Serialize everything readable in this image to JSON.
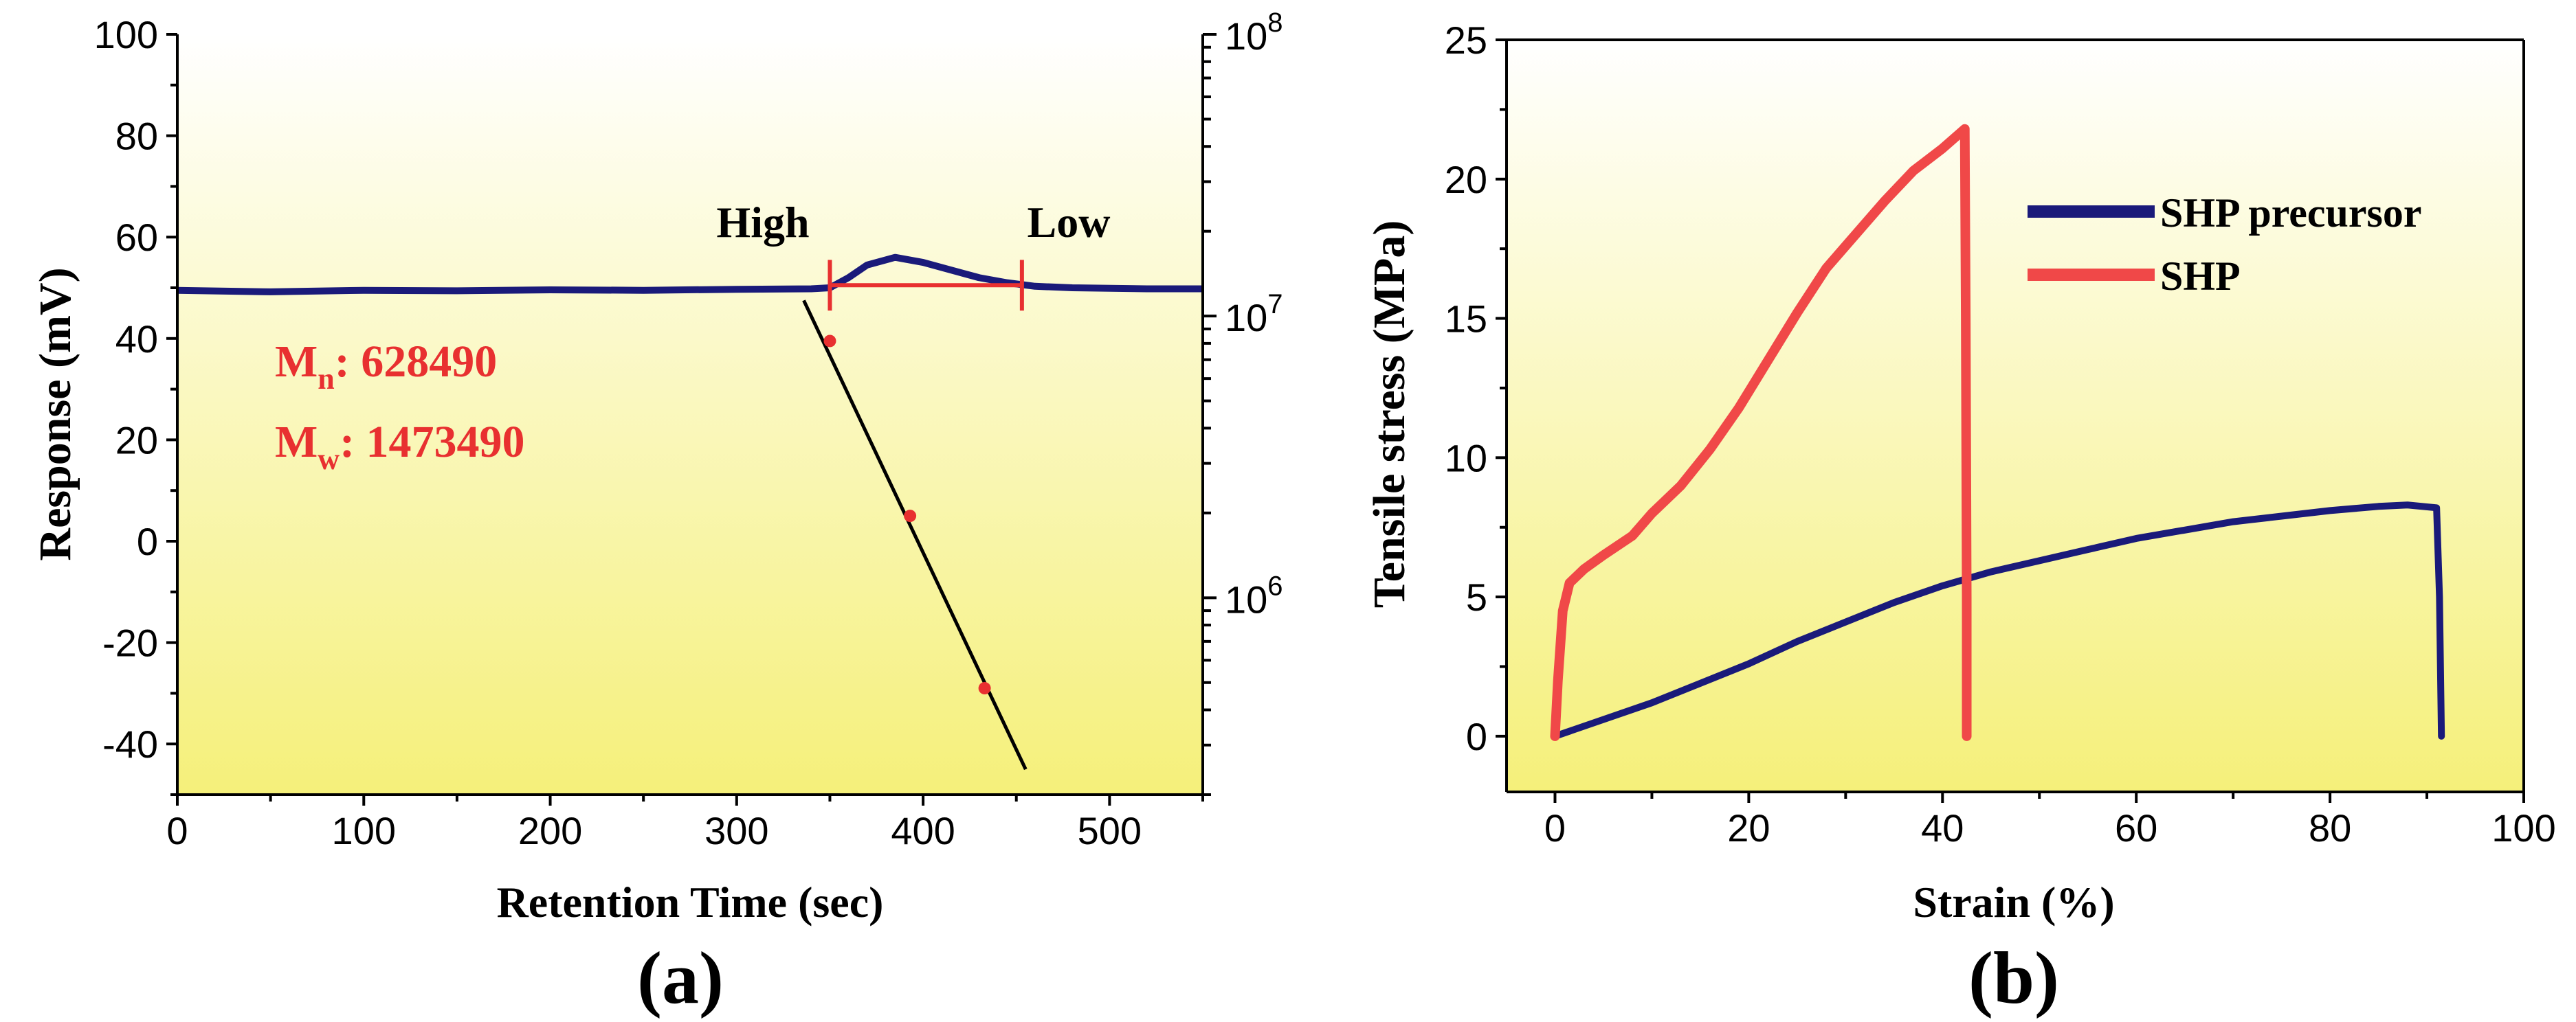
{
  "chart_data": [
    {
      "panel": "(a)",
      "type": "line",
      "xlabel": "Retention Time (sec)",
      "ylabel": "Response (mV)",
      "xlim": [
        0,
        550
      ],
      "ylim": [
        -50,
        100
      ],
      "xticks": [
        0,
        100,
        200,
        300,
        400,
        500
      ],
      "yticks": [
        -40,
        -20,
        0,
        20,
        40,
        60,
        80,
        100
      ],
      "y2_scale": "log",
      "y2lim": [
        200000,
        100000000
      ],
      "y2ticks": [
        {
          "base": "10",
          "exp": "6",
          "value": 1000000
        },
        {
          "base": "10",
          "exp": "7",
          "value": 10000000
        },
        {
          "base": "10",
          "exp": "8",
          "value": 100000000
        }
      ],
      "grid": false,
      "background": {
        "top": "#ffffff",
        "bottom": "#f5f07a"
      },
      "series": [
        {
          "color": "#1a1a7a",
          "points": [
            [
              0,
              49.5
            ],
            [
              50,
              49.2
            ],
            [
              100,
              49.5
            ],
            [
              150,
              49.4
            ],
            [
              200,
              49.6
            ],
            [
              250,
              49.5
            ],
            [
              300,
              49.7
            ],
            [
              340,
              49.8
            ],
            [
              350,
              50
            ],
            [
              360,
              52
            ],
            [
              370,
              54.5
            ],
            [
              385,
              56
            ],
            [
              400,
              55
            ],
            [
              415,
              53.5
            ],
            [
              430,
              52
            ],
            [
              445,
              51
            ],
            [
              460,
              50.3
            ],
            [
              480,
              50
            ],
            [
              520,
              49.8
            ],
            [
              550,
              49.8
            ]
          ]
        }
      ],
      "calibration_line": {
        "color": "#000000",
        "points": [
          [
            336,
            47.5
          ],
          [
            455,
            -45
          ]
        ]
      },
      "calibration_points": {
        "color": "#e83030",
        "points": [
          [
            350,
            39.5
          ],
          [
            393,
            5
          ],
          [
            433,
            -29
          ]
        ]
      },
      "range_bar": {
        "color": "#e83030",
        "x": [
          350,
          453
        ],
        "y": 50.5,
        "tick_halfheight": 5
      },
      "annotations": {
        "high": "High",
        "low": "Low",
        "mn": {
          "prefix": "M",
          "sub": "n",
          "text": ": 628490"
        },
        "mw": {
          "prefix": "M",
          "sub": "w",
          "text": ": 1473490"
        }
      }
    },
    {
      "panel": "(b)",
      "type": "line",
      "xlabel": "Strain (%)",
      "ylabel": "Tensile stress (MPa)",
      "xlim": [
        -5,
        100
      ],
      "ylim": [
        -2,
        25
      ],
      "xticks": [
        0,
        20,
        40,
        60,
        80,
        100
      ],
      "yticks": [
        0,
        5,
        10,
        15,
        20,
        25
      ],
      "grid": false,
      "legend_position": "top-right",
      "background": {
        "top": "#ffffff",
        "bottom": "#f5f07a"
      },
      "series": [
        {
          "name": "SHP precursor",
          "color": "#1a1a7a",
          "points": [
            [
              0,
              0
            ],
            [
              5,
              0.6
            ],
            [
              10,
              1.2
            ],
            [
              15,
              1.9
            ],
            [
              20,
              2.6
            ],
            [
              25,
              3.4
            ],
            [
              30,
              4.1
            ],
            [
              35,
              4.8
            ],
            [
              40,
              5.4
            ],
            [
              45,
              5.9
            ],
            [
              50,
              6.3
            ],
            [
              55,
              6.7
            ],
            [
              60,
              7.1
            ],
            [
              65,
              7.4
            ],
            [
              70,
              7.7
            ],
            [
              75,
              7.9
            ],
            [
              80,
              8.1
            ],
            [
              85,
              8.25
            ],
            [
              88,
              8.3
            ],
            [
              91,
              8.2
            ],
            [
              91.3,
              5
            ],
            [
              91.5,
              0
            ]
          ]
        },
        {
          "name": "SHP",
          "color": "#f04848",
          "points": [
            [
              0,
              0
            ],
            [
              0.3,
              2
            ],
            [
              0.8,
              4.5
            ],
            [
              1.5,
              5.5
            ],
            [
              3,
              6
            ],
            [
              5,
              6.5
            ],
            [
              8,
              7.2
            ],
            [
              10,
              8
            ],
            [
              13,
              9
            ],
            [
              16,
              10.3
            ],
            [
              19,
              11.8
            ],
            [
              22,
              13.5
            ],
            [
              25,
              15.2
            ],
            [
              28,
              16.8
            ],
            [
              31,
              18
            ],
            [
              34,
              19.2
            ],
            [
              37,
              20.3
            ],
            [
              40,
              21.1
            ],
            [
              42.3,
              21.8
            ],
            [
              42.4,
              15
            ],
            [
              42.5,
              5
            ],
            [
              42.5,
              0
            ]
          ]
        }
      ]
    }
  ],
  "panel_labels": [
    "(a)",
    "(b)"
  ]
}
